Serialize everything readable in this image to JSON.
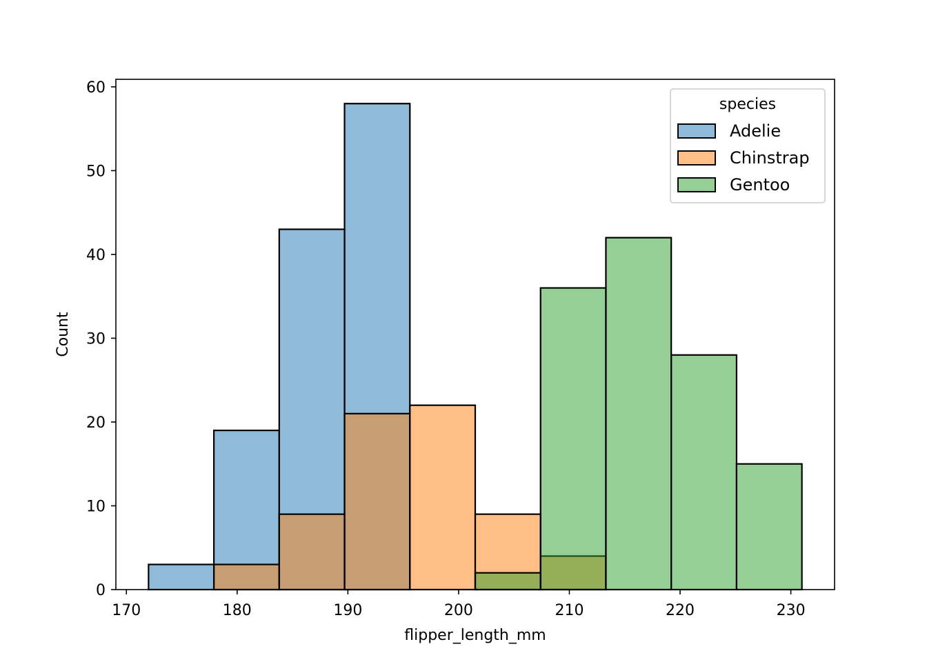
{
  "chart_data": {
    "type": "bar",
    "xlabel": "flipper_length_mm",
    "ylabel": "Count",
    "xlim": [
      169.05,
      233.95
    ],
    "ylim": [
      0,
      60.9
    ],
    "xticks": [
      170,
      180,
      190,
      200,
      210,
      220,
      230
    ],
    "yticks": [
      0,
      10,
      20,
      30,
      40,
      50,
      60
    ],
    "bin_edges": [
      172.0,
      177.9,
      183.8,
      189.7,
      195.6,
      201.5,
      207.4,
      213.3,
      219.2,
      225.1,
      231.0
    ],
    "series": [
      {
        "name": "Adelie",
        "color": "#1f77b4",
        "values": [
          3,
          19,
          43,
          58,
          0,
          0,
          0,
          0,
          0,
          0
        ]
      },
      {
        "name": "Chinstrap",
        "color": "#ff7f0e",
        "values": [
          0,
          3,
          9,
          21,
          22,
          9,
          4,
          0,
          0,
          0
        ]
      },
      {
        "name": "Gentoo",
        "color": "#2ca02c",
        "values": [
          0,
          0,
          0,
          0,
          0,
          2,
          36,
          42,
          28,
          15
        ]
      }
    ],
    "fill_opacity": 0.5,
    "legend": {
      "title": "species",
      "position": "top-right"
    },
    "grid": false
  }
}
